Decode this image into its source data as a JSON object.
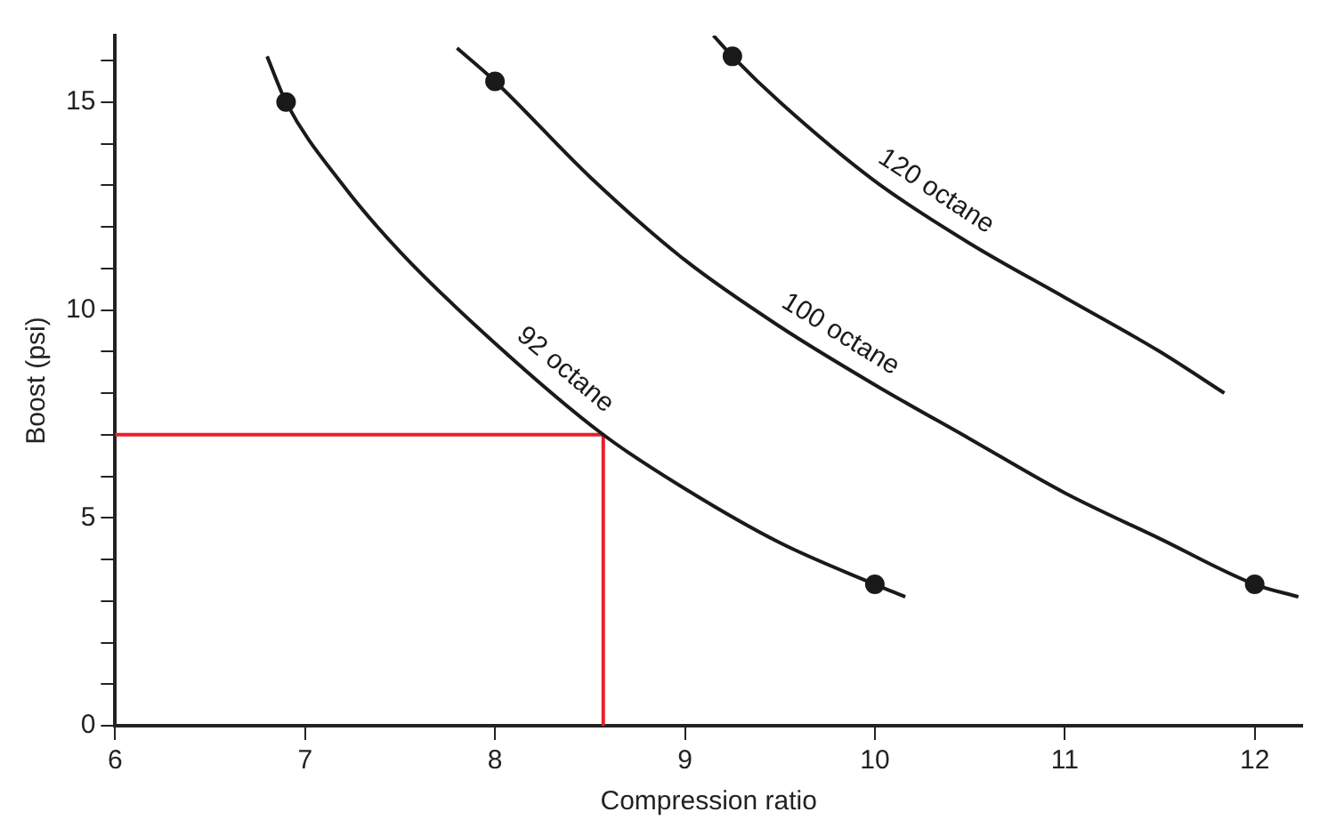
{
  "chart_data": {
    "type": "line",
    "xlabel": "Compression ratio",
    "ylabel": "Boost (psi)",
    "xlim": [
      6,
      12.25
    ],
    "xticks": [
      6,
      7,
      8,
      9,
      10,
      11,
      12
    ],
    "ylim": [
      0,
      16.6
    ],
    "yticks": [
      0,
      {
        "value": 1,
        "label": null
      },
      {
        "value": 2,
        "label": null
      },
      {
        "value": 3,
        "label": null
      },
      {
        "value": 4,
        "label": null
      },
      5,
      {
        "value": 6,
        "label": null
      },
      {
        "value": 7,
        "label": null
      },
      {
        "value": 8,
        "label": null
      },
      {
        "value": 9,
        "label": null
      },
      10,
      {
        "value": 11,
        "label": null
      },
      {
        "value": 12,
        "label": null
      },
      {
        "value": 13,
        "label": null
      },
      {
        "value": 14,
        "label": null
      },
      15,
      {
        "value": 16,
        "label": null
      }
    ],
    "grid": false,
    "legend": false,
    "marker": "none",
    "line_style": "solid",
    "series": [
      {
        "name": "92 octane",
        "color": "#1a1a1a",
        "x": [
          6.8,
          6.9,
          7.2,
          7.5,
          8.0,
          8.57,
          9.0,
          9.5,
          10.0,
          10.16
        ],
        "values": [
          16.1,
          15,
          13.0,
          11.4,
          9.2,
          7.0,
          5.7,
          4.4,
          3.4,
          3.1
        ]
      },
      {
        "name": "100 octane",
        "color": "#1a1a1a",
        "x": [
          7.8,
          8.0,
          8.5,
          9.0,
          9.5,
          10.0,
          10.5,
          11.0,
          11.5,
          12.0,
          12.23
        ],
        "values": [
          16.3,
          15.5,
          13.2,
          11.2,
          9.6,
          8.2,
          6.9,
          5.6,
          4.5,
          3.4,
          3.1
        ]
      },
      {
        "name": "120 octane",
        "color": "#1a1a1a",
        "x": [
          9.15,
          9.25,
          9.5,
          10.0,
          10.5,
          11.0,
          11.5,
          11.84
        ],
        "values": [
          16.6,
          16.1,
          15.0,
          13.1,
          11.6,
          10.3,
          9.0,
          8.0
        ]
      },
      {
        "type": "scatter",
        "marker": "circle",
        "color": "#1a1a1a",
        "x": [
          6.9,
          10.0,
          8.0,
          12.0,
          9.25
        ],
        "values": [
          15,
          3.4,
          15.5,
          3.4,
          16.1
        ]
      },
      {
        "color": "#e8202a",
        "x": [
          6,
          8.57,
          8.57
        ],
        "values": [
          7,
          7,
          0
        ]
      }
    ]
  }
}
